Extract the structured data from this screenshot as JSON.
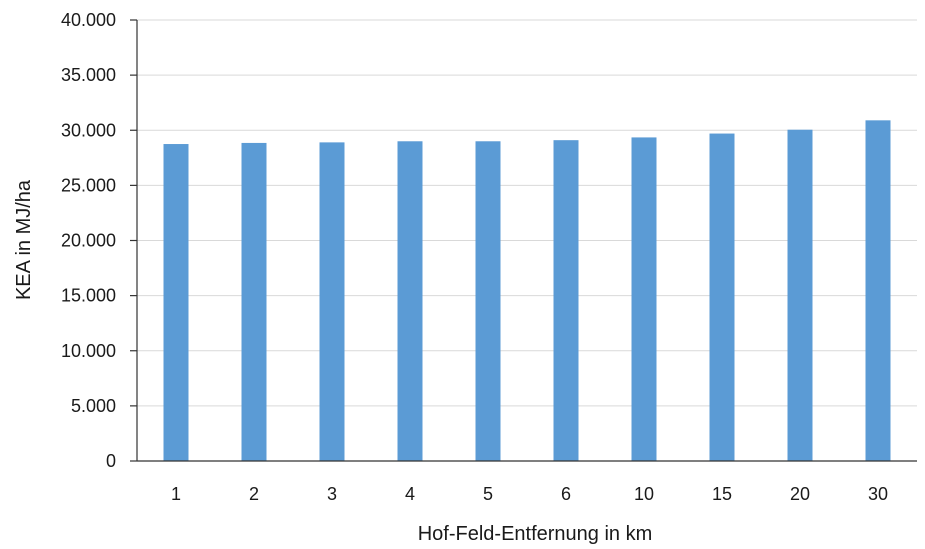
{
  "chart_data": {
    "type": "bar",
    "categories": [
      "1",
      "2",
      "3",
      "4",
      "5",
      "6",
      "10",
      "15",
      "20",
      "30"
    ],
    "values": [
      28750,
      28850,
      28900,
      29000,
      29000,
      29100,
      29350,
      29700,
      30050,
      30900
    ],
    "xlabel": "Hof-Feld-Entfernung in km",
    "ylabel": "KEA in MJ/ha",
    "ylim": [
      0,
      40000
    ],
    "yticks": [
      "0",
      "5.000",
      "10.000",
      "15.000",
      "20.000",
      "25.000",
      "30.000",
      "35.000",
      "40.000"
    ],
    "grid": true,
    "bar_color": "#5b9bd5",
    "grid_color": "#d9d9d9",
    "axis_color": "#333333"
  }
}
